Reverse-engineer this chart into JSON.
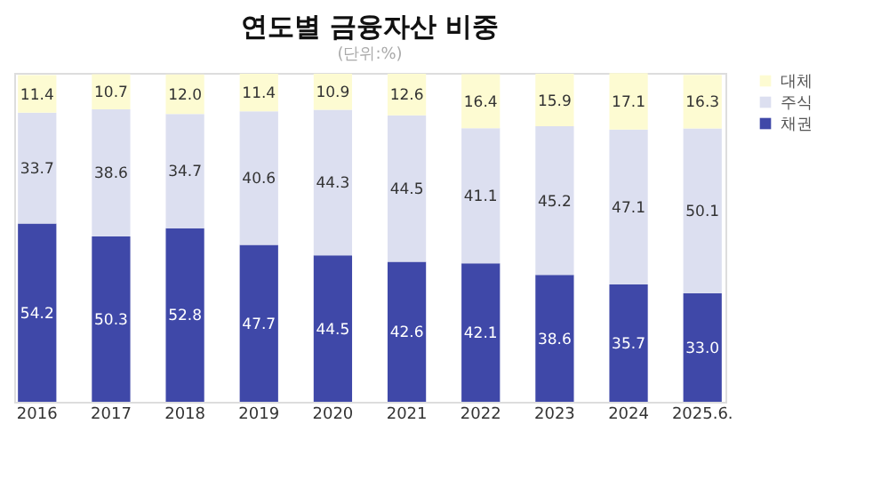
{
  "chart_data": {
    "type": "bar",
    "title": "연도별 금융자산 비중",
    "annotations": [
      "(단위:%)"
    ],
    "categories": [
      "2016",
      "2017",
      "2018",
      "2019",
      "2020",
      "2021",
      "2022",
      "2023",
      "2024",
      "2025.6."
    ],
    "stacked": true,
    "legend": "right",
    "tick_labels": "x",
    "grid": false,
    "ylim": [
      0,
      100
    ],
    "series": [
      {
        "name": "채권",
        "color": "#3f48a8",
        "values": [
          54.2,
          50.3,
          52.8,
          47.7,
          44.5,
          42.6,
          42.1,
          38.6,
          35.7,
          33.0
        ],
        "value_labels": [
          "54.2",
          "50.3",
          "52.8",
          "47.7",
          "44.5",
          "42.6",
          "42.1",
          "38.6",
          "35.7",
          "33.0"
        ]
      },
      {
        "name": "주식",
        "color": "#dcdff0",
        "values": [
          33.7,
          38.6,
          34.7,
          40.6,
          44.3,
          44.5,
          41.1,
          45.2,
          47.1,
          50.1
        ],
        "value_labels": [
          "33.7",
          "38.6",
          "34.7",
          "40.6",
          "44.3",
          "44.5",
          "41.1",
          "45.2",
          "47.1",
          "50.1"
        ]
      },
      {
        "name": "대체",
        "color": "#fdfbd2",
        "values": [
          11.4,
          10.7,
          12.0,
          11.4,
          10.9,
          12.6,
          16.4,
          15.9,
          17.1,
          16.3
        ],
        "value_labels": [
          "11.4",
          "10.7",
          "12.0",
          "11.4",
          "10.9",
          "12.6",
          "16.4",
          "15.9",
          "17.1",
          "16.3"
        ]
      }
    ]
  }
}
